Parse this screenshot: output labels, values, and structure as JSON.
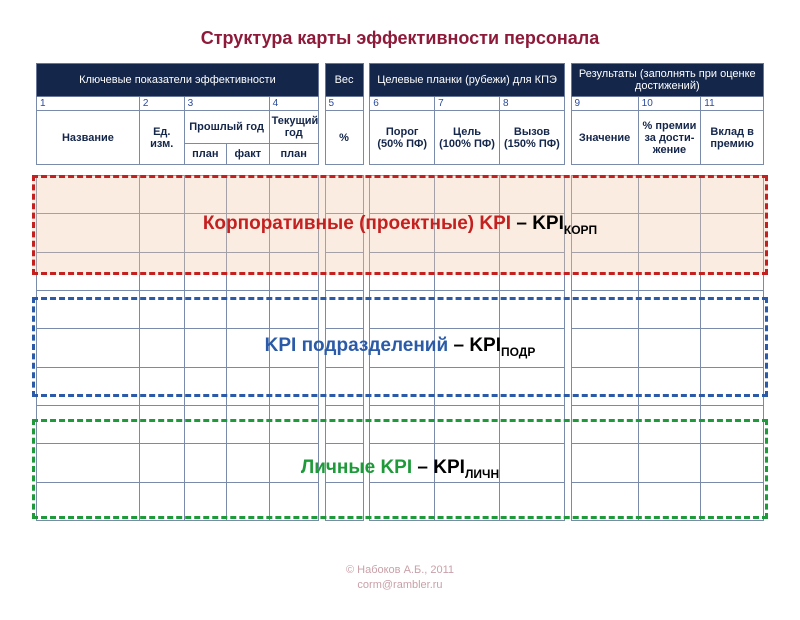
{
  "title": {
    "text": "Структура карты эффективности персонала",
    "color": "#8e1a3a"
  },
  "colors": {
    "header_bg": "#14264a",
    "header_text": "#ffffff",
    "cell_border": "#7a8aaa",
    "num_color": "#2a4a9a",
    "label_color": "#14264a"
  },
  "header": {
    "group1": "Ключевые показатели эффективности",
    "group2": "Вес",
    "group3": "Целевые планки (рубежи) для КПЭ",
    "group4": "Результаты (заполнять при оценке достижений)"
  },
  "nums": [
    "1",
    "2",
    "3",
    "4",
    "5",
    "6",
    "7",
    "8",
    "9",
    "10",
    "11"
  ],
  "cols": {
    "c1": "Название",
    "c2": "Ед. изм.",
    "c3_top": "Прошлый год",
    "c3a": "план",
    "c3b": "факт",
    "c4_top": "Текущий год",
    "c4a": "план",
    "c5": "%",
    "c6": "Порог (50% ПФ)",
    "c7": "Цель (100% ПФ)",
    "c8": "Вызов (150% ПФ)",
    "c9": "Значение",
    "c10": "% премии за дости-жение",
    "c11": "Вклад в премию"
  },
  "sections": {
    "s1": {
      "label": "Корпоративные (проектные) KPI",
      "abbr": "KPI",
      "sub": "КОРП",
      "color": "#c42020",
      "border_color": "#c42020",
      "fill": "rgba(240,200,165,0.35)"
    },
    "s2": {
      "label": "KPI  подразделений",
      "abbr": "KPI",
      "sub": "ПОДР",
      "color": "#2a5aa8",
      "border_color": "#2a5aa8",
      "fill": "rgba(255,255,255,0)"
    },
    "s3": {
      "label": "Личные  KPI",
      "abbr": "KPI",
      "sub": "ЛИЧН",
      "color": "#1e9a3a",
      "border_color": "#1e9a3a",
      "fill": "rgba(255,255,255,0)"
    }
  },
  "footer": {
    "line1": "© Набоков А.Б., 2011",
    "line2": "corm@rambler.ru"
  },
  "grid": {
    "rows": 9
  }
}
